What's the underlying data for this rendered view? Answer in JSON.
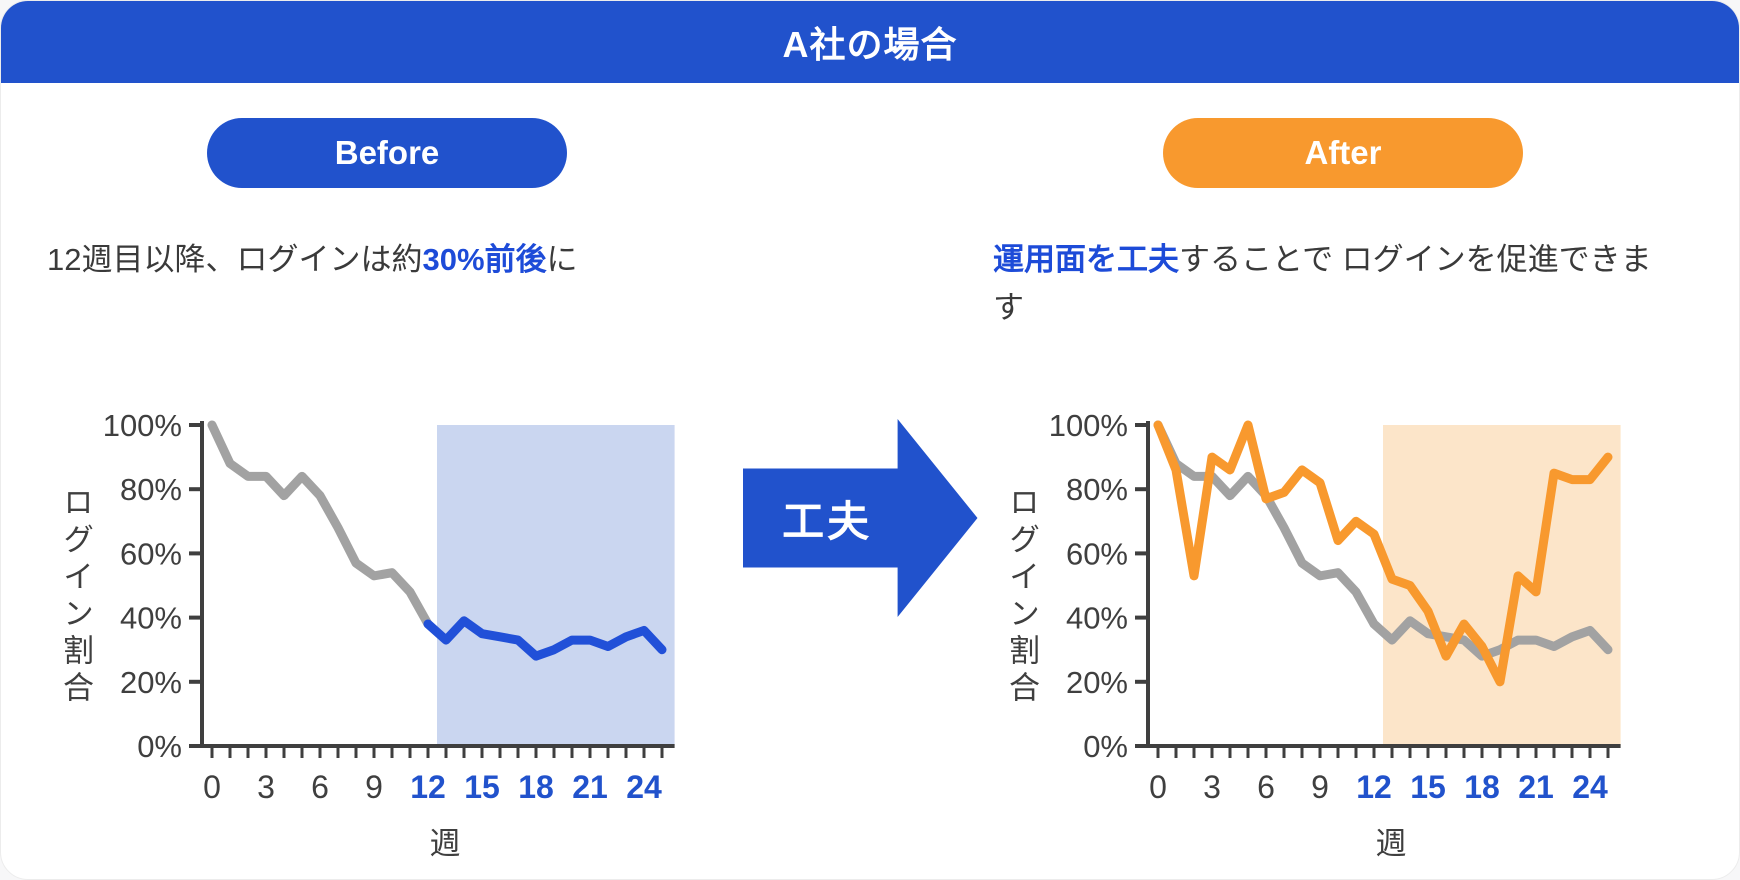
{
  "banner": {
    "title": "A社の場合"
  },
  "arrow": {
    "label": "工夫"
  },
  "colors": {
    "blue": "#2152cc",
    "accent_text_blue": "#1d4bd8",
    "orange": "#f8992e",
    "gray_line": "#a2a2a2",
    "blue_line": "#2150d8",
    "blue_shade": "#cad6f0",
    "orange_shade": "#fce5c9",
    "axis": "#3f3f3f"
  },
  "before": {
    "badge": "Before",
    "caption": [
      {
        "text": "12週目以降、ログインは約",
        "accent": false
      },
      {
        "text": "30%前後",
        "accent": true
      },
      {
        "text": "に",
        "accent": false
      }
    ]
  },
  "after": {
    "badge": "After",
    "caption": [
      {
        "text": "運用面を工夫",
        "accent": true
      },
      {
        "text": "することで ログインを促進できます",
        "accent": false
      }
    ]
  },
  "chart_data": [
    {
      "type": "line",
      "panel": "before",
      "ylabel": "ログイン割合",
      "xlabel": "週",
      "ylim": [
        0,
        100
      ],
      "xlim": [
        0,
        25.7
      ],
      "y_ticks": [
        {
          "value": 0,
          "label": "0%"
        },
        {
          "value": 20,
          "label": "20%"
        },
        {
          "value": 40,
          "label": "40%"
        },
        {
          "value": 60,
          "label": "60%"
        },
        {
          "value": 80,
          "label": "80%"
        },
        {
          "value": 100,
          "label": "100%"
        }
      ],
      "x_minor_ticks_every_week": true,
      "x_tick_labels": [
        {
          "week": 0,
          "label": "0",
          "accent": false
        },
        {
          "week": 3,
          "label": "3",
          "accent": false
        },
        {
          "week": 6,
          "label": "6",
          "accent": false
        },
        {
          "week": 9,
          "label": "9",
          "accent": false
        },
        {
          "week": 12,
          "label": "12",
          "accent": true
        },
        {
          "week": 15,
          "label": "15",
          "accent": true
        },
        {
          "week": 18,
          "label": "18",
          "accent": true
        },
        {
          "week": 21,
          "label": "21",
          "accent": true
        },
        {
          "week": 24,
          "label": "24",
          "accent": true
        }
      ],
      "highlight_region": {
        "from_week": 12.5,
        "to_week": 25.7,
        "color": "#cad6f0"
      },
      "series": [
        {
          "name": "login-rate-weeks-0-12",
          "color": "#a2a2a2",
          "weeks": [
            0,
            1,
            2,
            3,
            4,
            5,
            6,
            7,
            8,
            9,
            10,
            11,
            12
          ],
          "values": [
            100,
            88,
            84,
            84,
            78,
            84,
            78,
            68,
            57,
            53,
            54,
            48,
            38
          ]
        },
        {
          "name": "login-rate-weeks-12-25-plateau",
          "color": "#2150d8",
          "weeks": [
            12,
            13,
            14,
            15,
            16,
            17,
            18,
            19,
            20,
            21,
            22,
            23,
            24,
            25
          ],
          "values": [
            38,
            33,
            39,
            35,
            34,
            33,
            28,
            30,
            33,
            33,
            31,
            34,
            36,
            30
          ]
        }
      ]
    },
    {
      "type": "line",
      "panel": "after",
      "ylabel": "ログイン割合",
      "xlabel": "週",
      "ylim": [
        0,
        100
      ],
      "xlim": [
        0,
        25.7
      ],
      "y_ticks": [
        {
          "value": 0,
          "label": "0%"
        },
        {
          "value": 20,
          "label": "20%"
        },
        {
          "value": 40,
          "label": "40%"
        },
        {
          "value": 60,
          "label": "60%"
        },
        {
          "value": 80,
          "label": "80%"
        },
        {
          "value": 100,
          "label": "100%"
        }
      ],
      "x_minor_ticks_every_week": true,
      "x_tick_labels": [
        {
          "week": 0,
          "label": "0",
          "accent": false
        },
        {
          "week": 3,
          "label": "3",
          "accent": false
        },
        {
          "week": 6,
          "label": "6",
          "accent": false
        },
        {
          "week": 9,
          "label": "9",
          "accent": false
        },
        {
          "week": 12,
          "label": "12",
          "accent": true
        },
        {
          "week": 15,
          "label": "15",
          "accent": true
        },
        {
          "week": 18,
          "label": "18",
          "accent": true
        },
        {
          "week": 21,
          "label": "21",
          "accent": true
        },
        {
          "week": 24,
          "label": "24",
          "accent": true
        }
      ],
      "highlight_region": {
        "from_week": 12.5,
        "to_week": 25.7,
        "color": "#fce5c9"
      },
      "series": [
        {
          "name": "baseline-without-measures",
          "color": "#a2a2a2",
          "weeks": [
            0,
            1,
            2,
            3,
            4,
            5,
            6,
            7,
            8,
            9,
            10,
            11,
            12,
            13,
            14,
            15,
            16,
            17,
            18,
            19,
            20,
            21,
            22,
            23,
            24,
            25
          ],
          "values": [
            100,
            88,
            84,
            84,
            78,
            84,
            78,
            68,
            57,
            53,
            54,
            48,
            38,
            33,
            39,
            35,
            34,
            33,
            28,
            30,
            33,
            33,
            31,
            34,
            36,
            30
          ]
        },
        {
          "name": "with-operational-measures",
          "color": "#f8992e",
          "weeks": [
            0,
            1,
            2,
            3,
            4,
            5,
            6,
            7,
            8,
            9,
            10,
            11,
            12,
            13,
            14,
            15,
            16,
            17,
            18,
            19,
            20,
            21,
            22,
            23,
            24,
            25
          ],
          "values": [
            100,
            86,
            53,
            90,
            86,
            100,
            77,
            79,
            86,
            82,
            64,
            70,
            66,
            52,
            50,
            42,
            28,
            38,
            31,
            20,
            53,
            48,
            85,
            83,
            83,
            90
          ]
        }
      ]
    }
  ]
}
